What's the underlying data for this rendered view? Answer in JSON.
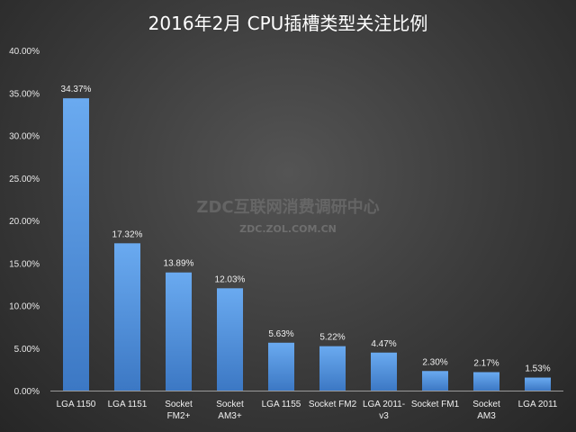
{
  "chart_data": {
    "type": "bar",
    "title": "2016年2月 CPU插槽类型关注比例",
    "categories": [
      [
        "LGA 1150"
      ],
      [
        "LGA 1151"
      ],
      [
        "Socket",
        "FM2+"
      ],
      [
        "Socket",
        "AM3+"
      ],
      [
        "LGA 1155"
      ],
      [
        "Socket FM2"
      ],
      [
        "LGA 2011-",
        "v3"
      ],
      [
        "Socket FM1"
      ],
      [
        "Socket",
        "AM3"
      ],
      [
        "LGA 2011"
      ]
    ],
    "values": [
      34.37,
      17.32,
      13.89,
      12.03,
      5.63,
      5.22,
      4.47,
      2.3,
      2.17,
      1.53
    ],
    "data_labels": [
      "34.37%",
      "17.32%",
      "13.89%",
      "12.03%",
      "5.63%",
      "5.22%",
      "4.47%",
      "2.30%",
      "2.17%",
      "1.53%"
    ],
    "y_ticks": [
      "0.00%",
      "5.00%",
      "10.00%",
      "15.00%",
      "20.00%",
      "25.00%",
      "30.00%",
      "35.00%",
      "40.00%"
    ],
    "ylim": [
      0,
      40
    ],
    "grid": false,
    "colors": {
      "bar_top": "#6aaaf0",
      "bar_bottom": "#3c78c4",
      "axis": "#9a9a9a"
    }
  },
  "watermark": {
    "line1": "ZDC互联网消费调研中心",
    "line2": "ZDC.ZOL.COM.CN"
  }
}
